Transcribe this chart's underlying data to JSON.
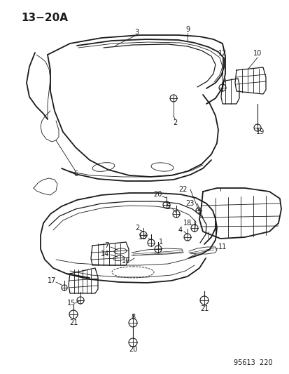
{
  "title": "13−20A",
  "footer": "95613  220",
  "bg_color": "#ffffff",
  "line_color": "#1a1a1a",
  "title_fontsize": 11,
  "footer_fontsize": 7,
  "fig_width": 4.14,
  "fig_height": 5.33,
  "dpi": 100
}
